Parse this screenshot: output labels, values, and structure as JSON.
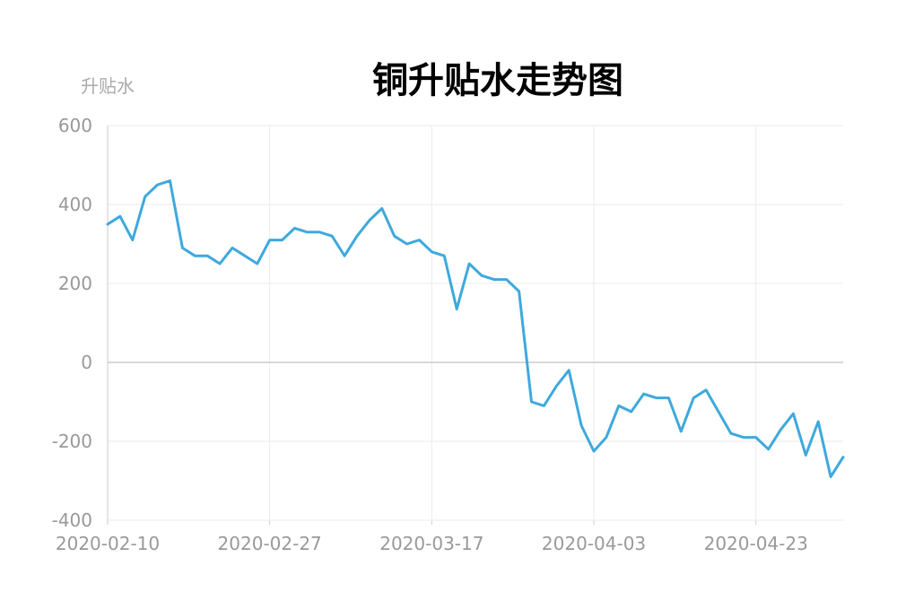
{
  "chart_data": {
    "type": "line",
    "title": "铜升贴水走势图",
    "ylabel": "升贴水",
    "xlabel": "",
    "ylim": [
      -400,
      600
    ],
    "yticks": [
      600,
      400,
      200,
      0,
      -200,
      -400
    ],
    "x_tick_labels": [
      "2020-02-10",
      "2020-02-27",
      "2020-03-17",
      "2020-04-03",
      "2020-04-23"
    ],
    "grid": true,
    "legend": "none",
    "series": [
      {
        "color": "#3ea9dd",
        "values": [
          350,
          370,
          310,
          420,
          450,
          460,
          290,
          270,
          270,
          250,
          290,
          270,
          250,
          310,
          310,
          340,
          330,
          330,
          320,
          270,
          320,
          360,
          390,
          320,
          300,
          310,
          280,
          270,
          135,
          250,
          220,
          210,
          210,
          180,
          -100,
          -110,
          -60,
          -20,
          -160,
          -225,
          -190,
          -110,
          -125,
          -80,
          -90,
          -90,
          -175,
          -90,
          -70,
          -125,
          -180,
          -190,
          -190,
          -220,
          -170,
          -130,
          -235,
          -150,
          -290,
          -240
        ]
      }
    ],
    "colors": {
      "grid": "#ebebeb",
      "axis": "#cccccc",
      "tick_text": "#999999",
      "title": "#000000"
    }
  }
}
